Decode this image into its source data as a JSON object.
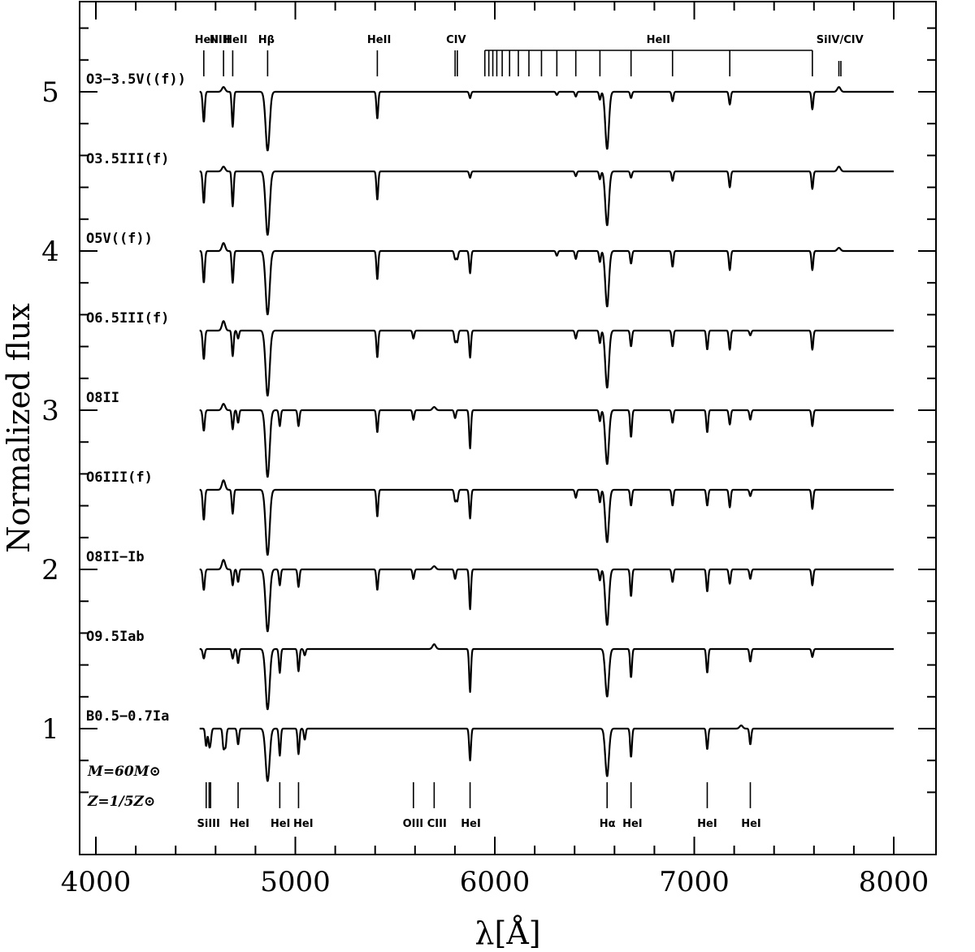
{
  "chart_data": {
    "type": "line",
    "xlabel": "λ[Å]",
    "ylabel": "Normalized flux",
    "xlim": [
      3920,
      8000
    ],
    "ylim": [
      0.2,
      5.5
    ],
    "x_ticks": [
      4000,
      5000,
      6000,
      7000,
      8000
    ],
    "y_ticks": [
      1,
      2,
      3,
      4,
      5
    ],
    "grid": false,
    "series": [
      {
        "name": "O3−3.5V((f))",
        "offset": 5.0,
        "start": 4520,
        "lines": [
          [
            4541,
            0.19
          ],
          [
            4686,
            0.22
          ],
          [
            4861,
            0.37
          ],
          [
            5411,
            0.17
          ],
          [
            5876,
            0.04
          ],
          [
            6311,
            0.02
          ],
          [
            6406,
            0.03
          ],
          [
            6527,
            0.05
          ],
          [
            6563,
            0.36
          ],
          [
            6683,
            0.04
          ],
          [
            6891,
            0.06
          ],
          [
            7178,
            0.08
          ],
          [
            7592,
            0.11
          ]
        ],
        "emission": [
          [
            4640,
            0.03
          ],
          [
            7725,
            0.03
          ]
        ]
      },
      {
        "name": "O3.5III(f)",
        "offset": 4.5,
        "start": 4520,
        "lines": [
          [
            4541,
            0.2
          ],
          [
            4686,
            0.22
          ],
          [
            4861,
            0.4
          ],
          [
            5411,
            0.18
          ],
          [
            5876,
            0.04
          ],
          [
            6406,
            0.03
          ],
          [
            6527,
            0.05
          ],
          [
            6563,
            0.34
          ],
          [
            6683,
            0.04
          ],
          [
            6891,
            0.06
          ],
          [
            7178,
            0.1
          ],
          [
            7592,
            0.11
          ]
        ],
        "emission": [
          [
            4640,
            0.03
          ],
          [
            7725,
            0.03
          ]
        ]
      },
      {
        "name": "O5V((f))",
        "offset": 4.0,
        "start": 4520,
        "lines": [
          [
            4541,
            0.2
          ],
          [
            4686,
            0.2
          ],
          [
            4861,
            0.4
          ],
          [
            5411,
            0.18
          ],
          [
            5801,
            0.05
          ],
          [
            5812,
            0.05
          ],
          [
            5876,
            0.14
          ],
          [
            6311,
            0.03
          ],
          [
            6406,
            0.05
          ],
          [
            6527,
            0.07
          ],
          [
            6563,
            0.35
          ],
          [
            6683,
            0.08
          ],
          [
            6891,
            0.1
          ],
          [
            7178,
            0.12
          ],
          [
            7592,
            0.12
          ]
        ],
        "emission": [
          [
            4640,
            0.05
          ],
          [
            7725,
            0.02
          ]
        ]
      },
      {
        "name": "O6.5III(f)",
        "offset": 3.5,
        "start": 4520,
        "lines": [
          [
            4541,
            0.18
          ],
          [
            4686,
            0.16
          ],
          [
            4713,
            0.05
          ],
          [
            4861,
            0.41
          ],
          [
            5411,
            0.17
          ],
          [
            5592,
            0.05
          ],
          [
            5801,
            0.07
          ],
          [
            5812,
            0.07
          ],
          [
            5876,
            0.17
          ],
          [
            6406,
            0.05
          ],
          [
            6527,
            0.08
          ],
          [
            6563,
            0.36
          ],
          [
            6683,
            0.1
          ],
          [
            6891,
            0.1
          ],
          [
            7065,
            0.12
          ],
          [
            7178,
            0.12
          ],
          [
            7281,
            0.03
          ],
          [
            7592,
            0.12
          ]
        ],
        "emission": [
          [
            4640,
            0.06
          ]
        ]
      },
      {
        "name": "O8II",
        "offset": 3.0,
        "start": 4520,
        "lines": [
          [
            4541,
            0.13
          ],
          [
            4686,
            0.12
          ],
          [
            4713,
            0.08
          ],
          [
            4861,
            0.42
          ],
          [
            4922,
            0.1
          ],
          [
            5016,
            0.1
          ],
          [
            5411,
            0.14
          ],
          [
            5592,
            0.06
          ],
          [
            5801,
            0.05
          ],
          [
            5876,
            0.24
          ],
          [
            6527,
            0.07
          ],
          [
            6563,
            0.34
          ],
          [
            6683,
            0.17
          ],
          [
            6891,
            0.08
          ],
          [
            7065,
            0.14
          ],
          [
            7178,
            0.09
          ],
          [
            7281,
            0.06
          ],
          [
            7592,
            0.1
          ]
        ],
        "emission": [
          [
            4640,
            0.04
          ],
          [
            5696,
            0.02
          ]
        ]
      },
      {
        "name": "O6III(f)",
        "offset": 2.5,
        "start": 4520,
        "lines": [
          [
            4541,
            0.19
          ],
          [
            4686,
            0.15
          ],
          [
            4861,
            0.41
          ],
          [
            5411,
            0.17
          ],
          [
            5801,
            0.07
          ],
          [
            5812,
            0.07
          ],
          [
            5876,
            0.18
          ],
          [
            6406,
            0.05
          ],
          [
            6527,
            0.08
          ],
          [
            6563,
            0.33
          ],
          [
            6683,
            0.1
          ],
          [
            6891,
            0.1
          ],
          [
            7065,
            0.1
          ],
          [
            7178,
            0.11
          ],
          [
            7281,
            0.04
          ],
          [
            7592,
            0.12
          ]
        ],
        "emission": [
          [
            4640,
            0.06
          ]
        ]
      },
      {
        "name": "O8II−Ib",
        "offset": 2.0,
        "start": 4520,
        "lines": [
          [
            4541,
            0.13
          ],
          [
            4686,
            0.1
          ],
          [
            4713,
            0.08
          ],
          [
            4861,
            0.39
          ],
          [
            4922,
            0.1
          ],
          [
            5016,
            0.11
          ],
          [
            5411,
            0.13
          ],
          [
            5592,
            0.06
          ],
          [
            5801,
            0.06
          ],
          [
            5876,
            0.25
          ],
          [
            6527,
            0.07
          ],
          [
            6563,
            0.35
          ],
          [
            6683,
            0.17
          ],
          [
            6891,
            0.08
          ],
          [
            7065,
            0.14
          ],
          [
            7178,
            0.09
          ],
          [
            7281,
            0.06
          ],
          [
            7592,
            0.1
          ]
        ],
        "emission": [
          [
            4640,
            0.06
          ],
          [
            5696,
            0.02
          ]
        ]
      },
      {
        "name": "O9.5Iab",
        "offset": 1.5,
        "start": 4520,
        "lines": [
          [
            4541,
            0.06
          ],
          [
            4686,
            0.06
          ],
          [
            4713,
            0.09
          ],
          [
            4861,
            0.38
          ],
          [
            4922,
            0.15
          ],
          [
            5016,
            0.14
          ],
          [
            5047,
            0.04
          ],
          [
            5876,
            0.27
          ],
          [
            6563,
            0.3
          ],
          [
            6683,
            0.18
          ],
          [
            7065,
            0.15
          ],
          [
            7281,
            0.08
          ],
          [
            7592,
            0.05
          ]
        ],
        "emission": [
          [
            5696,
            0.03
          ]
        ]
      },
      {
        "name": "B0.5−0.7Ia",
        "offset": 1.0,
        "start": 4520,
        "lines": [
          [
            4553,
            0.11
          ],
          [
            4568,
            0.09
          ],
          [
            4575,
            0.07
          ],
          [
            4640,
            0.12
          ],
          [
            4650,
            0.11
          ],
          [
            4713,
            0.1
          ],
          [
            4861,
            0.33
          ],
          [
            4922,
            0.17
          ],
          [
            5016,
            0.16
          ],
          [
            5047,
            0.07
          ],
          [
            5876,
            0.2
          ],
          [
            6563,
            0.3
          ],
          [
            6683,
            0.18
          ],
          [
            7065,
            0.13
          ],
          [
            7281,
            0.1
          ]
        ],
        "emission": [
          [
            7235,
            0.02
          ]
        ]
      }
    ],
    "annotations_top": {
      "HeII": 4541,
      "NIII": 4640,
      "HeII ": 4686,
      "Hβ": 4861,
      "HeII  ": 5411,
      "CIV": [
        5801,
        5812
      ],
      "HeII series": [
        5950,
        5970,
        5990,
        6010,
        6037,
        6074,
        6118,
        6171,
        6234,
        6311,
        6406,
        6527,
        6683,
        6891,
        7178,
        7592
      ],
      "SiIV/CIV": [
        7725,
        7735
      ]
    },
    "annotations_bottom": {
      "SiIII": [
        4553,
        4568,
        4575
      ],
      "HeI": 4713,
      "HeI ": 4922,
      "HeI  ": 5016,
      "OIII": 5592,
      "CIII": 5696,
      "HeI   ": 5876,
      "Hα": 6563,
      "HeI    ": 6683,
      "HeI     ": 7065,
      "HeI      ": 7281
    },
    "parameters": [
      "M=60M⊙",
      "Z=1/5Z⊙"
    ]
  }
}
